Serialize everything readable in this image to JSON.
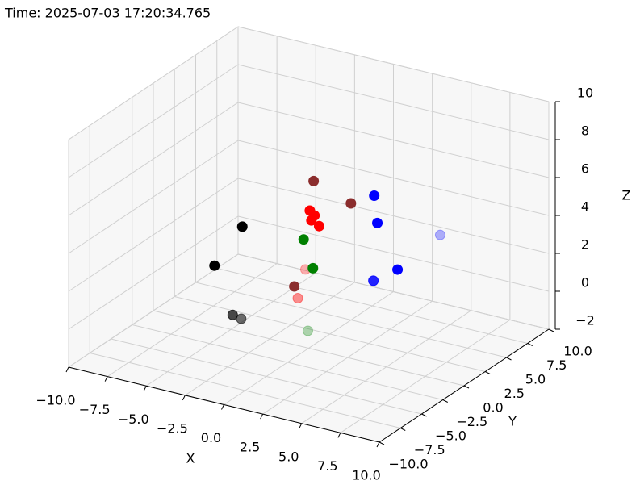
{
  "chart_data": {
    "type": "scatter3d",
    "title": "Time: 2025-07-03 17:20:34.765",
    "xlabel": "X",
    "ylabel": "Y",
    "zlabel": "Z",
    "xlim": [
      -10,
      10
    ],
    "ylim": [
      -10,
      10
    ],
    "zlim": [
      -2,
      10
    ],
    "xticks": [
      {
        "value": -10,
        "label": "−10.0"
      },
      {
        "value": -7.5,
        "label": "−7.5"
      },
      {
        "value": -5,
        "label": "−5.0"
      },
      {
        "value": -2.5,
        "label": "−2.5"
      },
      {
        "value": 0,
        "label": "0.0"
      },
      2.5,
      {
        "value": 5,
        "label": "5.0"
      },
      7.5,
      {
        "value": 10,
        "label": "10.0"
      }
    ],
    "yticks": [
      {
        "value": -10,
        "label": "−10.0"
      },
      {
        "value": -7.5,
        "label": "−7.5"
      },
      {
        "value": -5,
        "label": "−5.0"
      },
      {
        "value": -2.5,
        "label": "−2.5"
      },
      {
        "value": 0,
        "label": "0.0"
      },
      2.5,
      {
        "value": 5,
        "label": "5.0"
      },
      7.5,
      {
        "value": 10,
        "label": "10.0"
      }
    ],
    "zticks": [
      {
        "value": -2,
        "label": "−2"
      },
      0,
      2,
      4,
      6,
      8,
      10
    ],
    "grid": true,
    "series": [
      {
        "color": "#000000",
        "x": [
          -1,
          -1.7,
          -3.8,
          -3.8
        ],
        "y": [
          -6,
          -8,
          -2,
          -1
        ],
        "z": [
          6,
          4.4,
          -0.4,
          -0.9
        ]
      },
      {
        "color": "#8b2d2d",
        "x": [
          2.5,
          4.9,
          1.8
        ],
        "y": [
          -4,
          -4,
          -5
        ],
        "z": [
          8.5,
          7.8,
          3.1
        ]
      },
      {
        "color": "#ff0000",
        "x": [
          2.8,
          3.1,
          2.9,
          3.4,
          -1.3,
          -0.7
        ],
        "y": [
          -5,
          -5,
          -5,
          -5,
          2,
          0
        ],
        "z": [
          7.3,
          7.1,
          6.8,
          6.6,
          1.3,
          0.5
        ]
      },
      {
        "color": "#008000",
        "x": [
          2.4,
          3,
          -0.6
        ],
        "y": [
          -5,
          -5,
          1
        ],
        "z": [
          5.7,
          4.3,
          -1.5
        ]
      },
      {
        "color": "#0000ff",
        "x": [
          6.4,
          6.6,
          7.9,
          5.8,
          4.1
        ],
        "y": [
          -4,
          -4,
          -4,
          -3,
          8
        ],
        "z": [
          8.5,
          7.1,
          4.9,
          3.6,
          2.4
        ]
      }
    ]
  }
}
